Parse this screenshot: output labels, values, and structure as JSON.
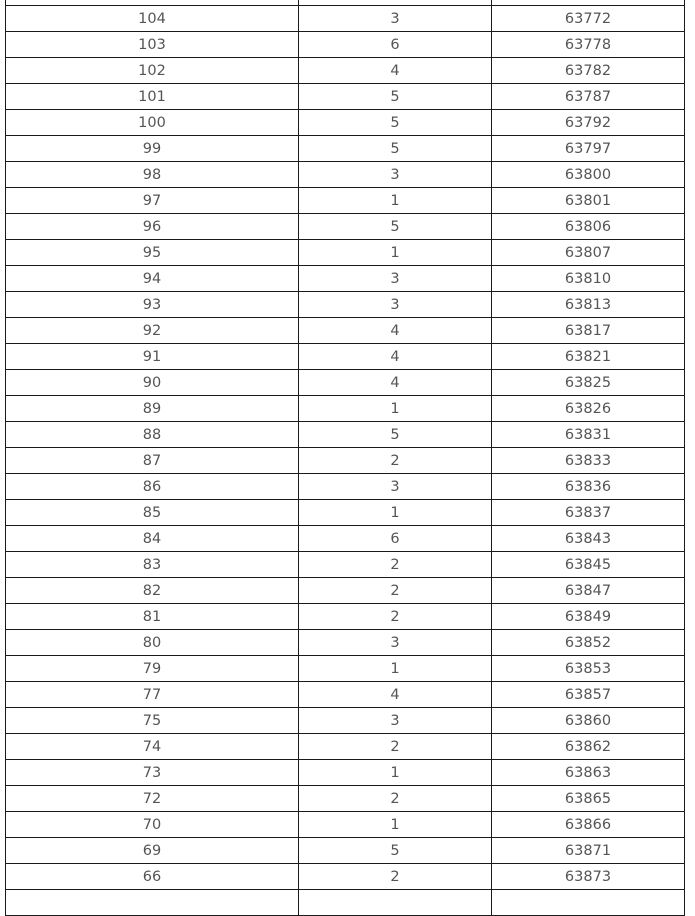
{
  "table": {
    "rows": [
      [
        "",
        "",
        ""
      ],
      [
        "104",
        "3",
        "63772"
      ],
      [
        "103",
        "6",
        "63778"
      ],
      [
        "102",
        "4",
        "63782"
      ],
      [
        "101",
        "5",
        "63787"
      ],
      [
        "100",
        "5",
        "63792"
      ],
      [
        "99",
        "5",
        "63797"
      ],
      [
        "98",
        "3",
        "63800"
      ],
      [
        "97",
        "1",
        "63801"
      ],
      [
        "96",
        "5",
        "63806"
      ],
      [
        "95",
        "1",
        "63807"
      ],
      [
        "94",
        "3",
        "63810"
      ],
      [
        "93",
        "3",
        "63813"
      ],
      [
        "92",
        "4",
        "63817"
      ],
      [
        "91",
        "4",
        "63821"
      ],
      [
        "90",
        "4",
        "63825"
      ],
      [
        "89",
        "1",
        "63826"
      ],
      [
        "88",
        "5",
        "63831"
      ],
      [
        "87",
        "2",
        "63833"
      ],
      [
        "86",
        "3",
        "63836"
      ],
      [
        "85",
        "1",
        "63837"
      ],
      [
        "84",
        "6",
        "63843"
      ],
      [
        "83",
        "2",
        "63845"
      ],
      [
        "82",
        "2",
        "63847"
      ],
      [
        "81",
        "2",
        "63849"
      ],
      [
        "80",
        "3",
        "63852"
      ],
      [
        "79",
        "1",
        "63853"
      ],
      [
        "77",
        "4",
        "63857"
      ],
      [
        "75",
        "3",
        "63860"
      ],
      [
        "74",
        "2",
        "63862"
      ],
      [
        "73",
        "1",
        "63863"
      ],
      [
        "72",
        "2",
        "63865"
      ],
      [
        "70",
        "1",
        "63866"
      ],
      [
        "69",
        "5",
        "63871"
      ],
      [
        "66",
        "2",
        "63873"
      ],
      [
        "",
        "",
        ""
      ]
    ]
  }
}
